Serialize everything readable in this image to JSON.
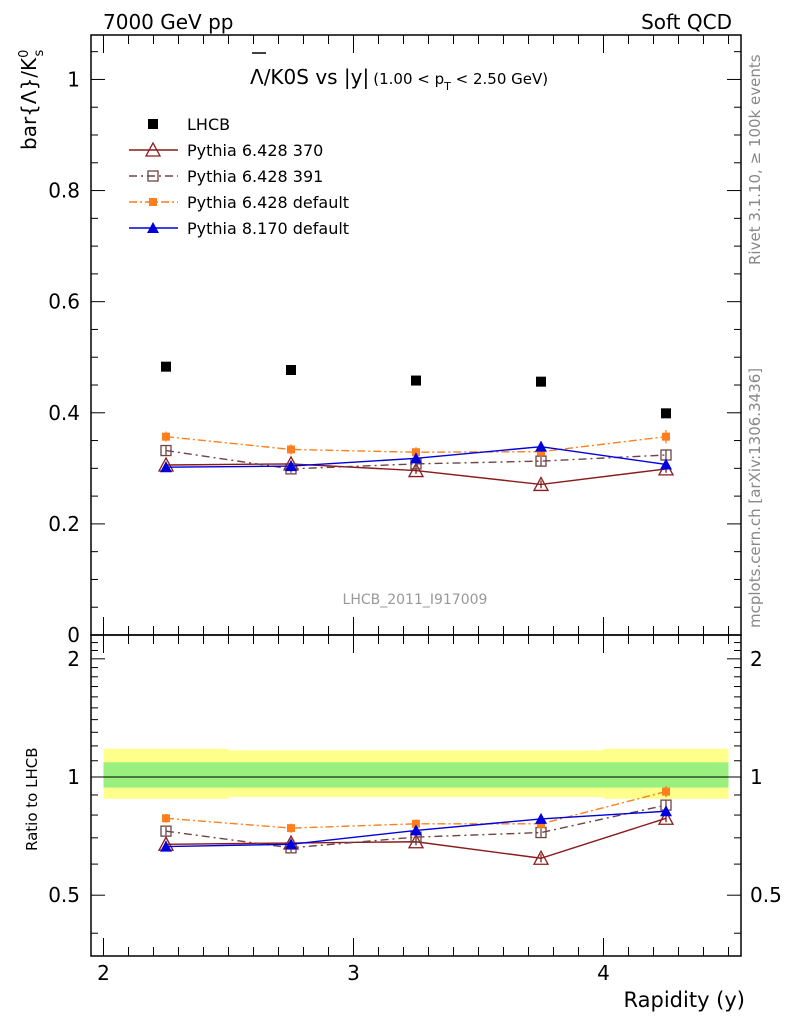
{
  "header": {
    "left": "7000 GeV pp",
    "right": "Soft QCD"
  },
  "title": {
    "main": "Λ/K0S vs |y|",
    "bar_letter": "Λ",
    "rest": "/K0S vs |y|",
    "cut_pre": "(1.00 < p",
    "cut_sub": "T",
    "cut_post": " < 2.50 GeV)"
  },
  "side_labels": {
    "rivet": "Rivet 3.1.10, ≥ 100k events",
    "mcplots": "mcplots.cern.ch [arXiv:1306.3436]"
  },
  "watermark": "LHCB_2011_I917009",
  "colors": {
    "data": "#000000",
    "p370": "#8b1a1a",
    "p391": "#6e4444",
    "p6def": "#ff7f1e",
    "p8def": "#0000dd",
    "band_inner": "#99f07f",
    "band_outer": "#ffff8c"
  },
  "chart_data": [
    {
      "type": "line",
      "panel": "main",
      "ylabel": "bar{Λ}/K_s^0",
      "ylabel_main": "bar{Λ}/K",
      "ylabel_sup": "0",
      "ylabel_sub": "s",
      "xlim": [
        1.95,
        4.55
      ],
      "ylim": [
        0,
        1.08
      ],
      "yticks": [
        {
          "v": 0,
          "label": "0"
        },
        {
          "v": 0.2,
          "label": "0.2"
        },
        {
          "v": 0.4,
          "label": "0.4"
        },
        {
          "v": 0.6,
          "label": "0.6"
        },
        {
          "v": 0.8,
          "label": "0.8"
        },
        {
          "v": 1.0,
          "label": "1"
        }
      ],
      "x": [
        2.25,
        2.75,
        3.25,
        3.75,
        4.25
      ],
      "bins": [
        [
          2.0,
          2.5
        ],
        [
          2.5,
          3.0
        ],
        [
          3.0,
          3.5
        ],
        [
          3.5,
          4.0
        ],
        [
          4.0,
          4.5
        ]
      ],
      "legend_position": "top-left",
      "series": [
        {
          "name": "LHCB",
          "key": "data",
          "marker": "square",
          "values": [
            0.483,
            0.477,
            0.458,
            0.456,
            0.399
          ],
          "errors": [
            0.004,
            0.004,
            0.004,
            0.004,
            0.004
          ]
        },
        {
          "name": "Pythia 6.428 370",
          "key": "p370",
          "marker": "triangle-open",
          "dash": "",
          "values": [
            0.306,
            0.308,
            0.296,
            0.271,
            0.299
          ],
          "errors": [
            0.006,
            0.006,
            0.006,
            0.007,
            0.007
          ]
        },
        {
          "name": "Pythia 6.428 391",
          "key": "p391",
          "marker": "square-open",
          "dash": "8,4,2,4",
          "values": [
            0.332,
            0.299,
            0.308,
            0.313,
            0.324
          ],
          "errors": [
            0.008,
            0.007,
            0.007,
            0.008,
            0.009
          ]
        },
        {
          "name": "Pythia 6.428 default",
          "key": "p6def",
          "marker": "square-small",
          "dash": "8,3,2,3",
          "values": [
            0.357,
            0.334,
            0.329,
            0.33,
            0.357
          ],
          "errors": [
            0.009,
            0.009,
            0.009,
            0.01,
            0.012
          ]
        },
        {
          "name": "Pythia 8.170 default",
          "key": "p8def",
          "marker": "triangle",
          "dash": "",
          "values": [
            0.302,
            0.304,
            0.318,
            0.339,
            0.307
          ],
          "errors": [
            0.006,
            0.006,
            0.007,
            0.009,
            0.009
          ]
        }
      ]
    },
    {
      "type": "line",
      "panel": "ratio",
      "ylabel": "Ratio to LHCB",
      "xlabel": "Rapidity (y)",
      "xlim": [
        1.95,
        4.55
      ],
      "ylim": [
        0.35,
        2.3
      ],
      "log_y": true,
      "xticks": [
        {
          "v": 2,
          "label": "2"
        },
        {
          "v": 3,
          "label": "3"
        },
        {
          "v": 4,
          "label": "4"
        }
      ],
      "yticks": [
        {
          "v": 0.5,
          "label": "0.5"
        },
        {
          "v": 1,
          "label": "1"
        },
        {
          "v": 2,
          "label": "2"
        }
      ],
      "band_inner": [
        [
          0.94,
          1.09
        ],
        [
          0.94,
          1.09
        ],
        [
          0.94,
          1.09
        ],
        [
          0.94,
          1.09
        ],
        [
          0.94,
          1.09
        ]
      ],
      "band_outer": [
        [
          0.88,
          1.18
        ],
        [
          0.89,
          1.17
        ],
        [
          0.89,
          1.17
        ],
        [
          0.89,
          1.17
        ],
        [
          0.88,
          1.18
        ]
      ],
      "x": [
        2.25,
        2.75,
        3.25,
        3.75,
        4.25
      ],
      "series": [
        {
          "name": "Pythia 6.428 370",
          "key": "p370",
          "marker": "triangle-open",
          "dash": "",
          "values": [
            0.674,
            0.679,
            0.684,
            0.621,
            0.785
          ],
          "errors": [
            0.014,
            0.013,
            0.014,
            0.015,
            0.018
          ]
        },
        {
          "name": "Pythia 6.428 391",
          "key": "p391",
          "marker": "square-open",
          "dash": "8,4,2,4",
          "values": [
            0.728,
            0.66,
            0.703,
            0.722,
            0.848
          ],
          "errors": [
            0.018,
            0.016,
            0.017,
            0.018,
            0.024
          ]
        },
        {
          "name": "Pythia 6.428 default",
          "key": "p6def",
          "marker": "square-small",
          "dash": "8,3,2,3",
          "values": [
            0.785,
            0.741,
            0.76,
            0.76,
            0.918
          ],
          "errors": [
            0.02,
            0.02,
            0.02,
            0.022,
            0.03
          ]
        },
        {
          "name": "Pythia 8.170 default",
          "key": "p8def",
          "marker": "triangle",
          "dash": "",
          "values": [
            0.665,
            0.674,
            0.731,
            0.782,
            0.818
          ],
          "errors": [
            0.013,
            0.013,
            0.016,
            0.02,
            0.022
          ]
        }
      ]
    }
  ]
}
